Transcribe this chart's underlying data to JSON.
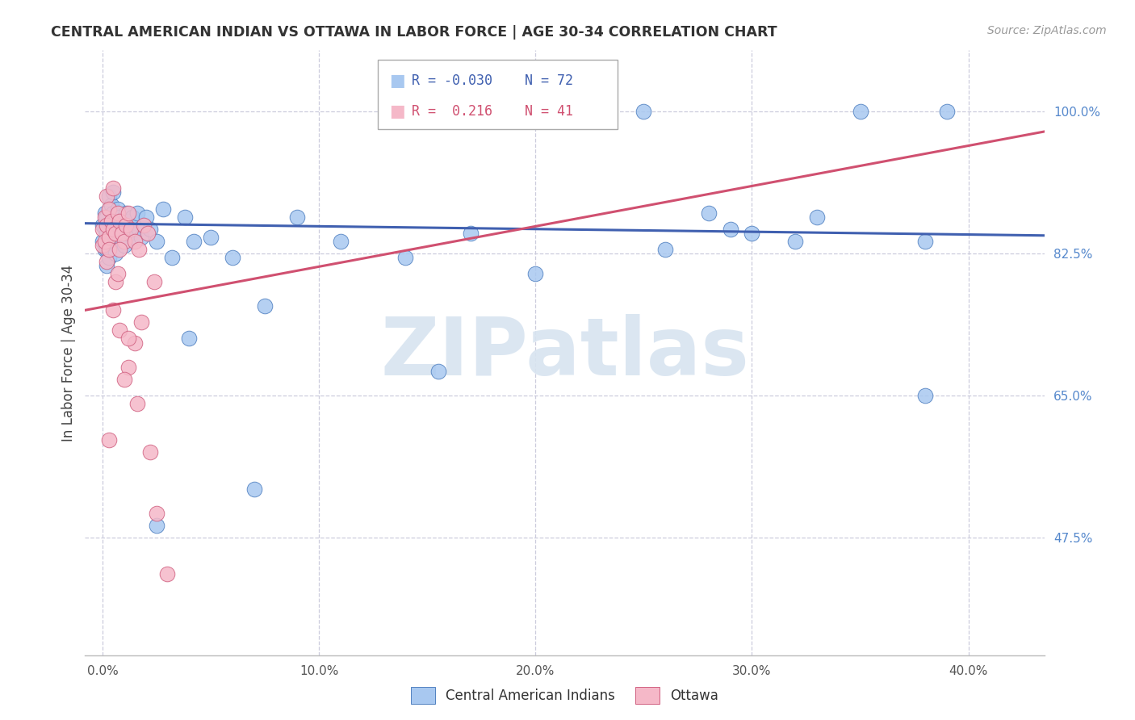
{
  "title": "CENTRAL AMERICAN INDIAN VS OTTAWA IN LABOR FORCE | AGE 30-34 CORRELATION CHART",
  "source": "Source: ZipAtlas.com",
  "ylabel": "In Labor Force | Age 30-34",
  "x_tick_labels": [
    "0.0%",
    "10.0%",
    "20.0%",
    "30.0%",
    "40.0%"
  ],
  "x_tick_positions": [
    0.0,
    0.1,
    0.2,
    0.3,
    0.4
  ],
  "y_tick_labels": [
    "47.5%",
    "65.0%",
    "82.5%",
    "100.0%"
  ],
  "y_tick_positions": [
    0.475,
    0.65,
    0.825,
    1.0
  ],
  "legend_labels": [
    "Central American Indians",
    "Ottawa"
  ],
  "legend_r_blue": "-0.030",
  "legend_n_blue": "72",
  "legend_r_pink": " 0.216",
  "legend_n_pink": "41",
  "blue_color": "#A8C8F0",
  "pink_color": "#F5B8C8",
  "blue_edge_color": "#5080C0",
  "pink_edge_color": "#D06080",
  "blue_line_color": "#4060B0",
  "pink_line_color": "#D05070",
  "right_axis_color": "#5588CC",
  "background_color": "#FFFFFF",
  "grid_color": "#CCCCDD",
  "watermark_color": "#D8E4F0",
  "watermark": "ZIPatlas",
  "blue_scatter_x": [
    0.0,
    0.0,
    0.001,
    0.001,
    0.001,
    0.002,
    0.002,
    0.002,
    0.002,
    0.003,
    0.003,
    0.003,
    0.003,
    0.004,
    0.004,
    0.004,
    0.005,
    0.005,
    0.005,
    0.006,
    0.006,
    0.006,
    0.007,
    0.007,
    0.008,
    0.008,
    0.009,
    0.009,
    0.01,
    0.01,
    0.011,
    0.011,
    0.012,
    0.013,
    0.014,
    0.015,
    0.016,
    0.017,
    0.018,
    0.019,
    0.02,
    0.022,
    0.025,
    0.028,
    0.032,
    0.038,
    0.042,
    0.05,
    0.06,
    0.075,
    0.09,
    0.11,
    0.14,
    0.17,
    0.2,
    0.2,
    0.25,
    0.28,
    0.3,
    0.33,
    0.35,
    0.38,
    0.39,
    0.2,
    0.155,
    0.29,
    0.32,
    0.38,
    0.26,
    0.04,
    0.025,
    0.07
  ],
  "blue_scatter_y": [
    0.86,
    0.84,
    0.855,
    0.83,
    0.875,
    0.87,
    0.85,
    0.83,
    0.81,
    0.895,
    0.86,
    0.84,
    0.82,
    0.885,
    0.86,
    0.84,
    0.9,
    0.875,
    0.85,
    0.865,
    0.845,
    0.825,
    0.88,
    0.86,
    0.87,
    0.845,
    0.86,
    0.84,
    0.855,
    0.835,
    0.875,
    0.85,
    0.865,
    0.85,
    0.87,
    0.845,
    0.875,
    0.855,
    0.845,
    0.86,
    0.87,
    0.855,
    0.84,
    0.88,
    0.82,
    0.87,
    0.84,
    0.845,
    0.82,
    0.76,
    0.87,
    0.84,
    0.82,
    0.85,
    1.0,
    1.0,
    1.0,
    0.875,
    0.85,
    0.87,
    1.0,
    0.84,
    1.0,
    0.8,
    0.68,
    0.855,
    0.84,
    0.65,
    0.83,
    0.72,
    0.49,
    0.535
  ],
  "pink_scatter_x": [
    0.0,
    0.0,
    0.001,
    0.001,
    0.002,
    0.002,
    0.003,
    0.003,
    0.004,
    0.005,
    0.005,
    0.006,
    0.007,
    0.008,
    0.009,
    0.01,
    0.011,
    0.012,
    0.013,
    0.015,
    0.017,
    0.019,
    0.021,
    0.024,
    0.005,
    0.008,
    0.012,
    0.016,
    0.003,
    0.006,
    0.01,
    0.015,
    0.002,
    0.007,
    0.012,
    0.003,
    0.008,
    0.018,
    0.022,
    0.025,
    0.03
  ],
  "pink_scatter_y": [
    0.855,
    0.835,
    0.87,
    0.84,
    0.895,
    0.86,
    0.88,
    0.845,
    0.865,
    0.905,
    0.855,
    0.85,
    0.875,
    0.865,
    0.85,
    0.84,
    0.86,
    0.875,
    0.855,
    0.84,
    0.83,
    0.86,
    0.85,
    0.79,
    0.755,
    0.73,
    0.685,
    0.64,
    0.595,
    0.79,
    0.67,
    0.715,
    0.815,
    0.8,
    0.72,
    0.83,
    0.83,
    0.74,
    0.58,
    0.505,
    0.43
  ],
  "xlim": [
    -0.008,
    0.435
  ],
  "ylim": [
    0.33,
    1.075
  ],
  "blue_trend_x": [
    -0.008,
    0.435
  ],
  "blue_trend_y": [
    0.862,
    0.847
  ],
  "pink_trend_x": [
    -0.008,
    0.435
  ],
  "pink_trend_y": [
    0.755,
    0.975
  ]
}
